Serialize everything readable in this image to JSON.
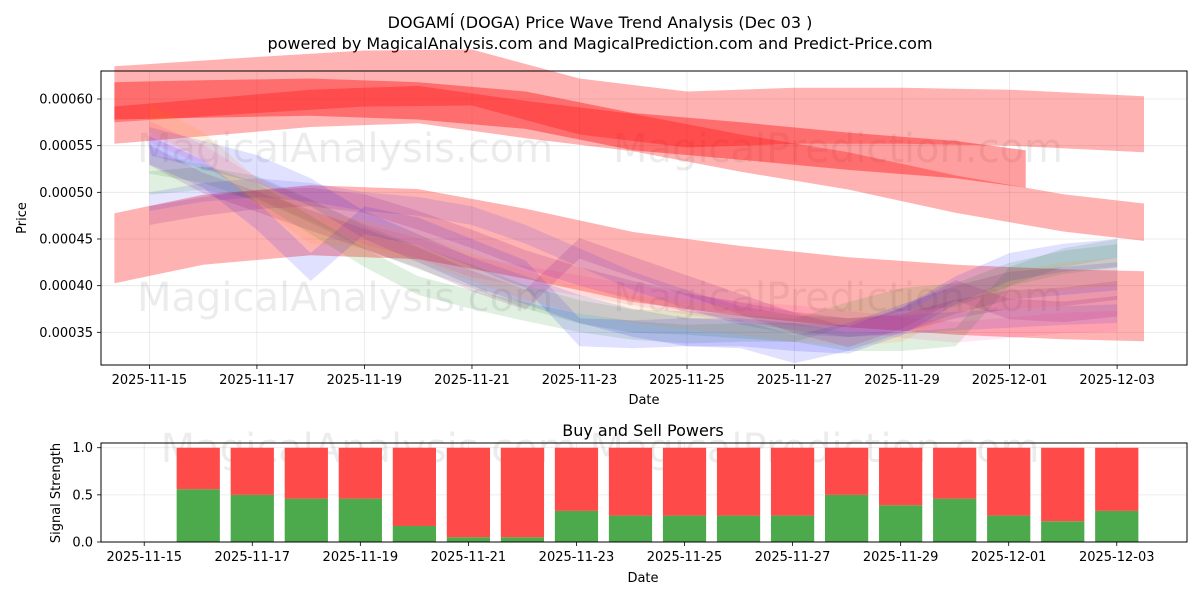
{
  "chart_data": [
    {
      "type": "area",
      "title": "DOGAMÍ (DOGA) Price Wave Trend Analysis (Dec 03 )",
      "subtitle": "powered by MagicalAnalysis.com and MagicalPrediction.com and Predict-Price.com",
      "xlabel": "Date",
      "ylabel": "Price",
      "x_ticks": [
        "2025-11-15",
        "2025-11-17",
        "2025-11-19",
        "2025-11-21",
        "2025-11-23",
        "2025-11-25",
        "2025-11-27",
        "2025-11-29",
        "2025-12-01",
        "2025-12-03"
      ],
      "y_ticks": [
        "0.00035",
        "0.00040",
        "0.00045",
        "0.00050",
        "0.00055",
        "0.00060"
      ],
      "ylim": [
        0.000315,
        0.00063
      ],
      "xlim_days": [
        -0.9,
        19.3
      ],
      "grid": true,
      "watermarks": [
        "MagicalAnalysis.com",
        "MagicalPrediction.com"
      ],
      "bands": [
        {
          "name": "red-top",
          "color": "#ff0000",
          "opacity": 0.3,
          "x": [
            -0.65,
            2,
            4,
            6,
            8,
            10,
            12,
            14,
            16,
            18.5
          ],
          "y": [
            0.000605,
            0.000615,
            0.000622,
            0.000623,
            0.000592,
            0.000578,
            0.000582,
            0.000582,
            0.00058,
            0.000573
          ],
          "width": 6e-05
        },
        {
          "name": "red-upper",
          "color": "#ff0000",
          "opacity": 0.38,
          "x": [
            -0.65,
            1,
            3,
            5,
            7,
            9,
            11,
            13,
            15,
            16.3
          ],
          "y": [
            0.000598,
            0.0006,
            0.000602,
            0.000598,
            0.000588,
            0.000565,
            0.000555,
            0.000544,
            0.000535,
            0.000525
          ],
          "width": 4e-05
        },
        {
          "name": "red-long",
          "color": "#ff0000",
          "opacity": 0.3,
          "x": [
            -0.65,
            1,
            3,
            5,
            7,
            9,
            11,
            13,
            15,
            17,
            18.5
          ],
          "y": [
            0.000572,
            0.00058,
            0.00059,
            0.000594,
            0.000578,
            0.000564,
            0.000542,
            0.000523,
            0.000498,
            0.000478,
            0.000468
          ],
          "width": 4e-05
        },
        {
          "name": "red-mid",
          "color": "#ff0000",
          "opacity": 0.3,
          "x": [
            -0.65,
            1,
            3,
            5,
            7,
            9,
            11,
            13,
            15,
            17,
            18.5
          ],
          "y": [
            0.00044,
            0.00046,
            0.00047,
            0.000466,
            0.000445,
            0.00042,
            0.000405,
            0.000393,
            0.000385,
            0.00038,
            0.000378
          ],
          "width": 7.5e-05
        },
        {
          "name": "green-1",
          "color": "#008000",
          "opacity": 0.12,
          "x": [
            0,
            1,
            2,
            3,
            4,
            5,
            6,
            7,
            8,
            9,
            10,
            11,
            12,
            13,
            14,
            15,
            16,
            17,
            18
          ],
          "y": [
            0.00053,
            0.00052,
            0.0005,
            0.000465,
            0.00043,
            0.0004,
            0.000385,
            0.000372,
            0.00036,
            0.000352,
            0.000348,
            0.00035,
            0.00035,
            0.00034,
            0.00034,
            0.000345,
            0.00041,
            0.00043,
            0.00044
          ],
          "width": 2e-05
        },
        {
          "name": "green-2",
          "color": "#008000",
          "opacity": 0.12,
          "x": [
            0,
            1,
            2,
            3,
            4,
            5,
            6,
            7,
            8,
            9,
            10,
            11,
            12,
            13,
            14,
            15,
            16,
            17,
            18
          ],
          "y": [
            0.00051,
            0.000515,
            0.000505,
            0.00048,
            0.000452,
            0.00043,
            0.00041,
            0.000388,
            0.000372,
            0.000362,
            0.00036,
            0.000356,
            0.000352,
            0.00037,
            0.000385,
            0.00039,
            0.000412,
            0.000425,
            0.000432
          ],
          "width": 2.5e-05
        },
        {
          "name": "blue-1",
          "color": "#0000ff",
          "opacity": 0.12,
          "x": [
            0,
            1,
            2,
            3,
            4,
            5,
            6,
            7,
            8,
            9,
            10,
            11,
            12,
            13,
            14,
            15,
            16,
            17,
            18
          ],
          "y": [
            0.000545,
            0.00052,
            0.000475,
            0.00042,
            0.00047,
            0.000458,
            0.000435,
            0.000412,
            0.00035,
            0.000348,
            0.00035,
            0.00035,
            0.000345,
            0.000342,
            0.000362,
            0.000395,
            0.00042,
            0.00043,
            0.000435
          ],
          "width": 3e-05
        },
        {
          "name": "blue-2",
          "color": "#0000ff",
          "opacity": 0.12,
          "x": [
            0,
            1,
            2,
            3,
            4,
            5,
            6,
            7,
            8,
            9,
            10,
            11,
            12,
            13,
            14,
            15,
            16,
            17,
            18
          ],
          "y": [
            0.000555,
            0.00054,
            0.000525,
            0.0005,
            0.000465,
            0.00044,
            0.000415,
            0.000395,
            0.000375,
            0.00036,
            0.00035,
            0.000348,
            0.000332,
            0.000345,
            0.000365,
            0.000385,
            0.0004,
            0.000405,
            0.00041
          ],
          "width": 3e-05
        },
        {
          "name": "blue-3",
          "color": "#0000ff",
          "opacity": 0.1,
          "x": [
            0,
            1,
            2,
            3,
            4,
            5,
            6,
            7,
            8,
            9,
            10,
            11,
            12,
            13,
            14,
            15,
            16,
            17,
            18
          ],
          "y": [
            0.00049,
            0.0005,
            0.000505,
            0.0005,
            0.00049,
            0.000485,
            0.000475,
            0.000455,
            0.00043,
            0.000405,
            0.000385,
            0.000368,
            0.000358,
            0.000355,
            0.000358,
            0.000362,
            0.000365,
            0.000368,
            0.00037
          ],
          "width": 2e-05
        },
        {
          "name": "purple-1",
          "color": "#800080",
          "opacity": 0.14,
          "x": [
            0,
            1,
            2,
            3,
            4,
            5,
            6,
            7,
            8,
            9,
            10,
            11,
            12,
            13,
            14,
            15,
            16,
            17,
            18
          ],
          "y": [
            0.00054,
            0.00051,
            0.00049,
            0.00047,
            0.00045,
            0.00043,
            0.000405,
            0.000385,
            0.00044,
            0.00042,
            0.0004,
            0.00038,
            0.00036,
            0.000345,
            0.000365,
            0.000395,
            0.000375,
            0.000372,
            0.000378
          ],
          "width": 2.2e-05
        },
        {
          "name": "purple-2",
          "color": "#800080",
          "opacity": 0.14,
          "x": [
            0,
            1,
            2,
            3,
            4,
            5,
            6,
            7,
            8,
            9,
            10,
            11,
            12,
            13,
            14,
            15,
            16,
            17,
            18
          ],
          "y": [
            0.000475,
            0.000485,
            0.000492,
            0.000495,
            0.000488,
            0.00047,
            0.00045,
            0.000428,
            0.00041,
            0.000395,
            0.000382,
            0.000372,
            0.000362,
            0.000355,
            0.00036,
            0.000375,
            0.000385,
            0.000388,
            0.000395
          ],
          "width": 2e-05
        },
        {
          "name": "orange-1",
          "color": "#ff8c00",
          "opacity": 0.12,
          "x": [
            0,
            1,
            2,
            3,
            4,
            5,
            6,
            7,
            8,
            9,
            10,
            11,
            12,
            13,
            14,
            15,
            16,
            17,
            18
          ],
          "y": [
            0.00058,
            0.00055,
            0.0005,
            0.00046,
            0.000455,
            0.00044,
            0.00042,
            0.0004,
            0.000385,
            0.000375,
            0.000368,
            0.000362,
            0.000355,
            0.00035,
            0.000355,
            0.000385,
            0.0004,
            0.00041,
            0.000415
          ],
          "width": 3e-05
        },
        {
          "name": "pink-1",
          "color": "#ff1493",
          "opacity": 0.1,
          "x": [
            0,
            1,
            2,
            3,
            4,
            5,
            6,
            7,
            8,
            9,
            10,
            11,
            12,
            13,
            14,
            15,
            16,
            17,
            18
          ],
          "y": [
            0.000565,
            0.00054,
            0.000505,
            0.00048,
            0.000455,
            0.00044,
            0.00042,
            0.00041,
            0.0004,
            0.00039,
            0.00038,
            0.000372,
            0.000368,
            0.000362,
            0.000355,
            0.00035,
            0.000355,
            0.00036,
            0.000362
          ],
          "width": 2.2e-05
        }
      ]
    },
    {
      "type": "bar",
      "title": "Buy and Sell Powers",
      "xlabel": "Date",
      "ylabel": "Signal Strength",
      "x_ticks": [
        "2025-11-15",
        "2025-11-17",
        "2025-11-19",
        "2025-11-21",
        "2025-11-23",
        "2025-11-25",
        "2025-11-27",
        "2025-11-29",
        "2025-12-01",
        "2025-12-03"
      ],
      "y_ticks": [
        "0.0",
        "0.5",
        "1.0"
      ],
      "ylim": [
        0,
        1.05
      ],
      "xlim_days": [
        -0.8,
        19.3
      ],
      "grid": true,
      "watermark": "MagicalAnalysis.com   MagicalPrediction.com",
      "categories": [
        "2025-11-16",
        "2025-11-17",
        "2025-11-18",
        "2025-11-19",
        "2025-11-20",
        "2025-11-21",
        "2025-11-22",
        "2025-11-23",
        "2025-11-24",
        "2025-11-25",
        "2025-11-26",
        "2025-11-27",
        "2025-11-28",
        "2025-11-29",
        "2025-11-30",
        "2025-12-01",
        "2025-12-02",
        "2025-12-03"
      ],
      "series": [
        {
          "name": "Buy",
          "color": "#4caa4c",
          "values": [
            0.56,
            0.5,
            0.46,
            0.46,
            0.17,
            0.05,
            0.05,
            0.33,
            0.28,
            0.28,
            0.28,
            0.28,
            0.5,
            0.39,
            0.46,
            0.28,
            0.22,
            0.33
          ]
        },
        {
          "name": "Sell",
          "color": "#ff4a4a",
          "values": [
            0.44,
            0.5,
            0.54,
            0.54,
            0.83,
            0.95,
            0.95,
            0.67,
            0.72,
            0.72,
            0.72,
            0.72,
            0.5,
            0.61,
            0.54,
            0.72,
            0.78,
            0.67
          ]
        }
      ]
    }
  ]
}
